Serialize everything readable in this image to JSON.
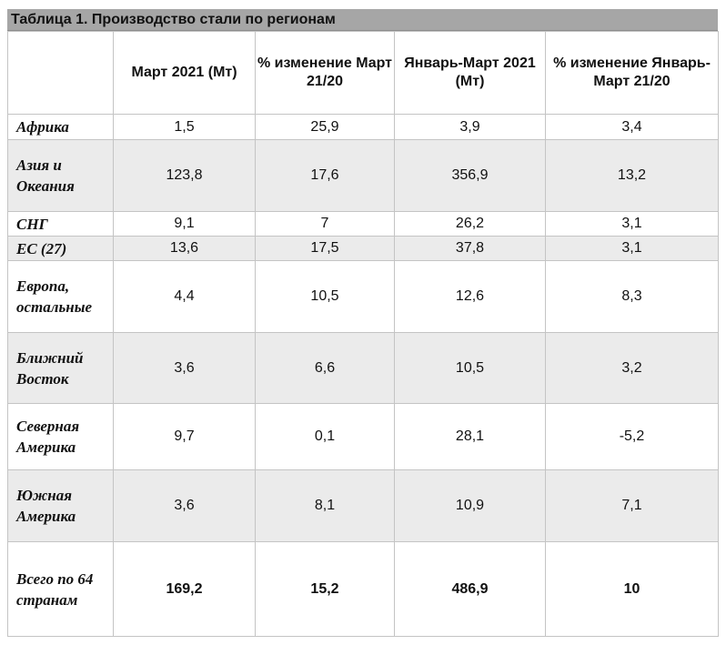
{
  "table": {
    "caption": "Таблица 1. Производство стали по регионам",
    "headers": [
      "",
      "Март 2021 (Мт)",
      "% изменение Март 21/20",
      "Январь-Март 2021 (Мт)",
      "% изменение Январь-Март 21/20"
    ],
    "rows": [
      {
        "region": "Африка",
        "values": [
          "1,5",
          "25,9",
          "3,9",
          "3,4"
        ]
      },
      {
        "region": "Азия и Океания",
        "values": [
          "123,8",
          "17,6",
          "356,9",
          "13,2"
        ]
      },
      {
        "region": "СНГ",
        "values": [
          "9,1",
          "7",
          "26,2",
          "3,1"
        ]
      },
      {
        "region": "ЕС (27)",
        "values": [
          "13,6",
          "17,5",
          "37,8",
          "3,1"
        ]
      },
      {
        "region": "Европа, остальные",
        "values": [
          "4,4",
          "10,5",
          "12,6",
          "8,3"
        ]
      },
      {
        "region": "Ближний Восток",
        "values": [
          "3,6",
          "6,6",
          "10,5",
          "3,2"
        ]
      },
      {
        "region": "Северная Америка",
        "values": [
          "9,7",
          "0,1",
          "28,1",
          "-5,2"
        ]
      },
      {
        "region": "Южная Америка",
        "values": [
          "3,6",
          "8,1",
          "10,9",
          "7,1"
        ]
      },
      {
        "region": "Всего по 64 странам",
        "values": [
          "169,2",
          "15,2",
          "486,9",
          "10"
        ]
      }
    ]
  },
  "colors": {
    "caption_bg": "#a6a6a6",
    "shaded_row_bg": "#ebebeb",
    "grid_line": "#c4c4c4"
  }
}
